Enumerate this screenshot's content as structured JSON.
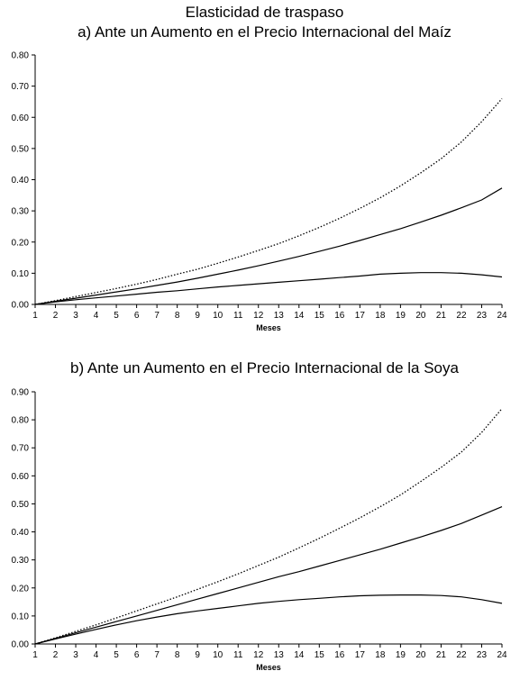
{
  "title": "Elasticidad de traspaso",
  "chart_data": [
    {
      "type": "line",
      "title": "a) Ante un Aumento en el Precio Internacional del Maíz",
      "xlabel": "Meses",
      "ylabel": "",
      "x": [
        1,
        2,
        3,
        4,
        5,
        6,
        7,
        8,
        9,
        10,
        11,
        12,
        13,
        14,
        15,
        16,
        17,
        18,
        19,
        20,
        21,
        22,
        23,
        24
      ],
      "ylim": [
        0,
        0.8
      ],
      "yticks": [
        "0.00",
        "0.10",
        "0.20",
        "0.30",
        "0.40",
        "0.50",
        "0.60",
        "0.70",
        "0.80"
      ],
      "grid": false,
      "series": [
        {
          "style": "dotted",
          "values": [
            0.0,
            0.012,
            0.025,
            0.038,
            0.051,
            0.065,
            0.08,
            0.097,
            0.113,
            0.132,
            0.152,
            0.173,
            0.195,
            0.22,
            0.247,
            0.276,
            0.308,
            0.342,
            0.38,
            0.422,
            0.467,
            0.521,
            0.586,
            0.66
          ]
        },
        {
          "style": "solid",
          "values": [
            0.0,
            0.01,
            0.02,
            0.03,
            0.04,
            0.05,
            0.061,
            0.072,
            0.084,
            0.097,
            0.11,
            0.124,
            0.139,
            0.154,
            0.17,
            0.187,
            0.205,
            0.224,
            0.243,
            0.264,
            0.286,
            0.31,
            0.335,
            0.373
          ]
        },
        {
          "style": "solid",
          "values": [
            0.0,
            0.008,
            0.015,
            0.021,
            0.027,
            0.033,
            0.039,
            0.044,
            0.05,
            0.056,
            0.061,
            0.066,
            0.071,
            0.076,
            0.081,
            0.086,
            0.091,
            0.097,
            0.1,
            0.102,
            0.102,
            0.1,
            0.095,
            0.088
          ]
        }
      ]
    },
    {
      "type": "line",
      "title": "b) Ante un Aumento en el Precio Internacional de la Soya",
      "xlabel": "Meses",
      "ylabel": "",
      "x": [
        1,
        2,
        3,
        4,
        5,
        6,
        7,
        8,
        9,
        10,
        11,
        12,
        13,
        14,
        15,
        16,
        17,
        18,
        19,
        20,
        21,
        22,
        23,
        24
      ],
      "ylim": [
        0,
        0.9
      ],
      "yticks": [
        "0.00",
        "0.10",
        "0.20",
        "0.30",
        "0.40",
        "0.50",
        "0.60",
        "0.70",
        "0.80",
        "0.90"
      ],
      "grid": false,
      "series": [
        {
          "style": "dotted",
          "values": [
            0.0,
            0.022,
            0.045,
            0.068,
            0.093,
            0.118,
            0.143,
            0.168,
            0.195,
            0.222,
            0.25,
            0.28,
            0.31,
            0.343,
            0.377,
            0.413,
            0.45,
            0.49,
            0.532,
            0.58,
            0.63,
            0.685,
            0.755,
            0.84
          ]
        },
        {
          "style": "solid",
          "values": [
            0.0,
            0.02,
            0.04,
            0.06,
            0.08,
            0.1,
            0.12,
            0.14,
            0.16,
            0.18,
            0.2,
            0.22,
            0.24,
            0.258,
            0.278,
            0.298,
            0.318,
            0.338,
            0.36,
            0.382,
            0.405,
            0.43,
            0.46,
            0.49
          ]
        },
        {
          "style": "solid",
          "values": [
            0.0,
            0.018,
            0.035,
            0.052,
            0.068,
            0.083,
            0.096,
            0.108,
            0.118,
            0.127,
            0.136,
            0.145,
            0.152,
            0.158,
            0.163,
            0.168,
            0.172,
            0.174,
            0.175,
            0.175,
            0.173,
            0.168,
            0.158,
            0.145
          ]
        }
      ]
    }
  ]
}
